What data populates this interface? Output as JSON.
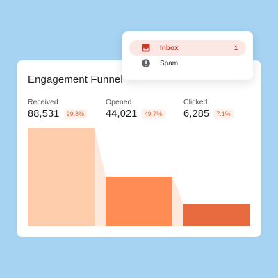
{
  "menu": {
    "items": [
      {
        "label": "Inbox",
        "count": "1",
        "icon": "inbox-icon"
      },
      {
        "label": "Spam",
        "icon": "spam-alert-icon"
      }
    ]
  },
  "card": {
    "title": "Engagement Funnel",
    "stages": [
      {
        "label": "Received",
        "value": "88,531",
        "pct": "99.8%"
      },
      {
        "label": "Opened",
        "value": "44,021",
        "pct": "49.7%"
      },
      {
        "label": "Clicked",
        "value": "6,285",
        "pct": "7.1%"
      }
    ]
  },
  "colors": {
    "background": "#a6d3f2",
    "bar_received": "#fecdab",
    "bar_opened": "#ff8c55",
    "bar_clicked": "#e86b40",
    "connector": "#fde9dc",
    "accent_red": "#c83a2c"
  }
}
